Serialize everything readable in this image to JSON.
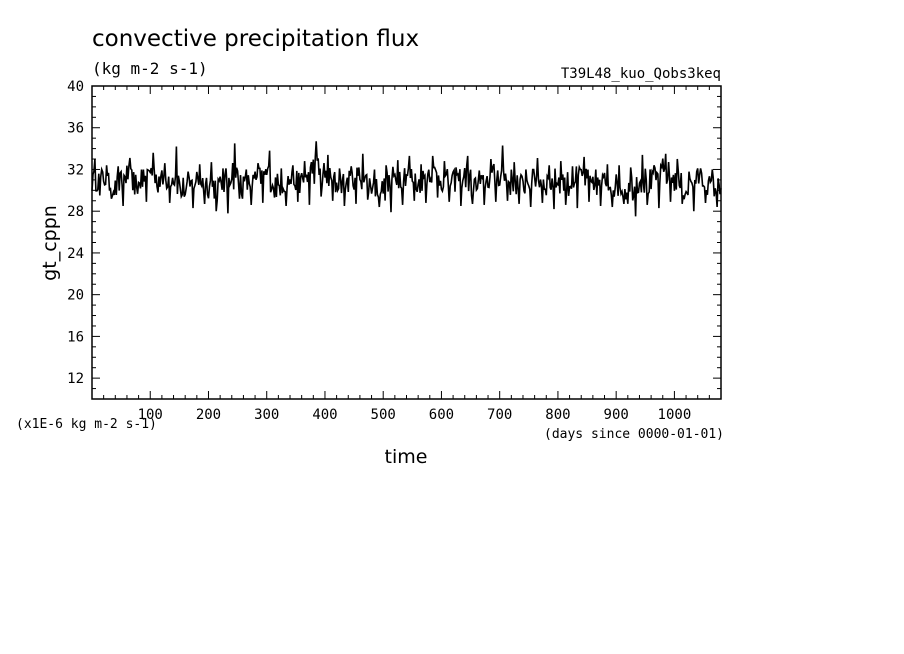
{
  "chart_data": {
    "type": "line",
    "title": "convective precipitation flux",
    "subtitle": "(kg m-2 s-1)",
    "experiment": "T39L48_kuo_Qobs3keq",
    "xlabel": "time",
    "x_units": "(days since 0000-01-01)",
    "ylabel": "gt_cppn",
    "y_scale_note": "(x1E-6 kg m-2 s-1)",
    "xlim": [
      0,
      1080
    ],
    "ylim": [
      10,
      40
    ],
    "x_ticks": [
      "100",
      "200",
      "300",
      "400",
      "500",
      "600",
      "700",
      "800",
      "900",
      "1000"
    ],
    "y_ticks": [
      "12",
      "16",
      "20",
      "24",
      "28",
      "32",
      "36",
      "40"
    ],
    "grid": false,
    "series": [
      {
        "x": [
          0,
          20,
          40,
          60,
          80,
          100,
          120,
          140,
          160,
          180,
          200,
          220,
          240,
          260,
          280,
          300,
          320,
          340,
          360,
          380,
          400,
          420,
          440,
          460,
          480,
          500,
          520,
          540,
          560,
          580,
          600,
          620,
          640,
          660,
          680,
          700,
          720,
          740,
          760,
          780,
          800,
          820,
          840,
          860,
          880,
          900,
          920,
          940,
          960,
          980,
          1000,
          1020,
          1040,
          1060,
          1080
        ],
        "values": [
          30.8,
          31.2,
          30.1,
          31.5,
          30.4,
          32.0,
          30.9,
          31.4,
          29.8,
          31.1,
          30.6,
          30.2,
          31.8,
          30.5,
          30.9,
          31.6,
          30.3,
          31.0,
          30.7,
          32.2,
          31.3,
          30.6,
          30.8,
          31.5,
          30.4,
          30.1,
          31.2,
          31.7,
          30.5,
          31.9,
          31.0,
          30.8,
          31.4,
          30.2,
          31.1,
          31.6,
          30.9,
          30.4,
          31.3,
          30.7,
          31.0,
          30.6,
          31.5,
          30.3,
          30.8,
          30.5,
          29.9,
          31.2,
          30.6,
          31.8,
          31.1,
          30.0,
          31.3,
          30.4,
          30.2
        ],
        "y_min": [
          29.5,
          29.2,
          28.5,
          29.6,
          28.9,
          29.8,
          28.8,
          29.4,
          28.3,
          28.7,
          28.0,
          27.8,
          29.2,
          28.6,
          28.8,
          29.3,
          28.5,
          28.9,
          28.6,
          29.4,
          29.0,
          28.5,
          28.7,
          29.1,
          28.4,
          27.9,
          28.6,
          29.0,
          28.8,
          29.3,
          28.9,
          28.5,
          28.7,
          28.6,
          28.9,
          29.0,
          28.7,
          28.4,
          28.8,
          28.2,
          28.6,
          28.3,
          28.9,
          28.5,
          28.4,
          28.7,
          27.5,
          28.6,
          28.3,
          28.9,
          28.7,
          28.0,
          28.8,
          28.4,
          28.6
        ],
        "y_max": [
          33.0,
          32.4,
          32.3,
          33.1,
          32.0,
          33.6,
          32.6,
          34.2,
          31.8,
          32.5,
          32.7,
          32.1,
          34.5,
          32.0,
          32.6,
          33.8,
          32.1,
          32.4,
          32.8,
          34.7,
          33.4,
          32.1,
          32.3,
          33.5,
          32.0,
          32.4,
          32.9,
          33.3,
          32.5,
          33.3,
          32.8,
          32.2,
          33.3,
          31.9,
          33.0,
          34.3,
          32.7,
          32.0,
          33.1,
          32.4,
          32.8,
          32.3,
          33.2,
          32.0,
          32.5,
          32.4,
          32.2,
          33.4,
          32.4,
          33.5,
          33.0,
          31.8,
          32.1,
          32.0,
          31.8
        ]
      }
    ]
  }
}
